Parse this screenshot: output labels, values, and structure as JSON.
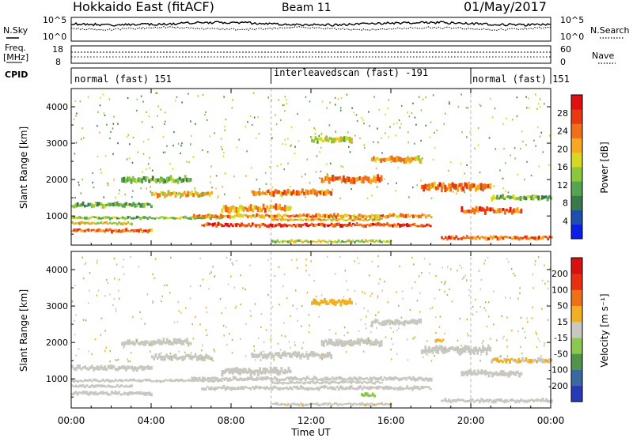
{
  "header": {
    "title": "Hokkaido East (fitACF)",
    "beam": "Beam 11",
    "date": "01/May/2017"
  },
  "aux_panels": {
    "nsky_label": "N.Sky",
    "nsearch_label": "N.Search",
    "noise_top_tick": "10^5",
    "noise_bottom_tick": "10^0",
    "freq_label_1": "Freq.",
    "freq_label_2": "[MHz]",
    "freq_ticks": [
      "18",
      "8"
    ],
    "nave_label": "Nave",
    "nave_ticks": [
      "60",
      "0"
    ],
    "cpid_label": "CPID",
    "cpid_segments": [
      {
        "label": "normal (fast) 151",
        "start_hour": 0,
        "end_hour": 10
      },
      {
        "label": "interleavedscan (fast) -191",
        "start_hour": 10,
        "end_hour": 20
      },
      {
        "label": "normal (fast) 151",
        "start_hour": 20,
        "end_hour": 24
      }
    ]
  },
  "chart_data": [
    {
      "type": "heatmap",
      "panel": "power",
      "ylabel": "Slant Range [km]",
      "ylim": [
        200,
        4500
      ],
      "yticks": [
        1000,
        2000,
        3000,
        4000
      ],
      "xlim": [
        0,
        24
      ],
      "colorbar": {
        "label": "Power [dB]",
        "range": [
          0,
          32
        ],
        "ticks": [
          "4",
          "8",
          "12",
          "16",
          "20",
          "24",
          "28"
        ],
        "colors": [
          "#0a1ee8",
          "#1e4fb0",
          "#3a7a4a",
          "#55a550",
          "#8cc83c",
          "#d8d820",
          "#f5a820",
          "#f07018",
          "#e83a10",
          "#e01010"
        ]
      },
      "bands": [
        {
          "t0": 0.0,
          "t1": 4.0,
          "r": 600,
          "w": 40,
          "v": 24
        },
        {
          "t0": 0.0,
          "t1": 3.0,
          "r": 800,
          "w": 30,
          "v": 18
        },
        {
          "t0": 0.0,
          "t1": 7.5,
          "r": 950,
          "w": 30,
          "v": 14
        },
        {
          "t0": 6.0,
          "t1": 18.0,
          "r": 1000,
          "w": 40,
          "v": 22
        },
        {
          "t0": 6.5,
          "t1": 18.0,
          "r": 750,
          "w": 40,
          "v": 27
        },
        {
          "t0": 10.0,
          "t1": 15.5,
          "r": 900,
          "w": 30,
          "v": 20
        },
        {
          "t0": 18.5,
          "t1": 24.0,
          "r": 400,
          "w": 40,
          "v": 25
        },
        {
          "t0": 0.0,
          "t1": 4.0,
          "r": 1300,
          "w": 50,
          "v": 12
        },
        {
          "t0": 4.0,
          "t1": 7.0,
          "r": 1600,
          "w": 60,
          "v": 20
        },
        {
          "t0": 7.5,
          "t1": 11.0,
          "r": 1200,
          "w": 70,
          "v": 21
        },
        {
          "t0": 9.0,
          "t1": 13.0,
          "r": 1650,
          "w": 60,
          "v": 23
        },
        {
          "t0": 12.5,
          "t1": 15.5,
          "r": 2000,
          "w": 70,
          "v": 24
        },
        {
          "t0": 15.0,
          "t1": 17.5,
          "r": 2550,
          "w": 60,
          "v": 20
        },
        {
          "t0": 17.5,
          "t1": 21.0,
          "r": 1800,
          "w": 80,
          "v": 24
        },
        {
          "t0": 19.5,
          "t1": 22.5,
          "r": 1150,
          "w": 60,
          "v": 25
        },
        {
          "t0": 21.0,
          "t1": 24.0,
          "r": 1500,
          "w": 50,
          "v": 14
        },
        {
          "t0": 10.0,
          "t1": 16.0,
          "r": 300,
          "w": 30,
          "v": 16
        },
        {
          "t0": 2.5,
          "t1": 6.0,
          "r": 2000,
          "w": 60,
          "v": 12
        },
        {
          "t0": 12.0,
          "t1": 14.0,
          "r": 3100,
          "w": 60,
          "v": 16
        }
      ]
    },
    {
      "type": "heatmap",
      "panel": "velocity",
      "xlabel": "Time UT",
      "ylabel": "Slant Range [km]",
      "ylim": [
        200,
        4500
      ],
      "yticks": [
        1000,
        2000,
        3000,
        4000
      ],
      "xlim": [
        0,
        24
      ],
      "xticks": [
        "00:00",
        "04:00",
        "08:00",
        "12:00",
        "16:00",
        "20:00",
        "00:00"
      ],
      "colorbar": {
        "label": "Velocity [m s⁻¹]",
        "range": [
          -250,
          250
        ],
        "ticks": [
          "200",
          "100",
          "50",
          "15",
          "-15",
          "-50",
          "-100",
          "-200"
        ],
        "colors": [
          "#2838b8",
          "#3a68a0",
          "#50944c",
          "#8cc850",
          "#c8c8c0",
          "#f0b020",
          "#f07018",
          "#e83010",
          "#d81010"
        ]
      },
      "bands": [
        {
          "t0": 0.0,
          "t1": 4.0,
          "r": 600,
          "w": 40,
          "v": 0
        },
        {
          "t0": 0.0,
          "t1": 3.0,
          "r": 800,
          "w": 30,
          "v": 0
        },
        {
          "t0": 0.0,
          "t1": 7.5,
          "r": 950,
          "w": 30,
          "v": 5
        },
        {
          "t0": 6.0,
          "t1": 18.0,
          "r": 1000,
          "w": 40,
          "v": 0
        },
        {
          "t0": 6.5,
          "t1": 18.0,
          "r": 750,
          "w": 40,
          "v": -5
        },
        {
          "t0": 10.0,
          "t1": 15.5,
          "r": 900,
          "w": 30,
          "v": 0
        },
        {
          "t0": 18.5,
          "t1": 24.0,
          "r": 400,
          "w": 40,
          "v": 0
        },
        {
          "t0": 0.0,
          "t1": 4.0,
          "r": 1300,
          "w": 50,
          "v": 0
        },
        {
          "t0": 4.0,
          "t1": 7.0,
          "r": 1600,
          "w": 60,
          "v": 0
        },
        {
          "t0": 7.5,
          "t1": 11.0,
          "r": 1200,
          "w": 70,
          "v": 0
        },
        {
          "t0": 9.0,
          "t1": 13.0,
          "r": 1650,
          "w": 60,
          "v": 0
        },
        {
          "t0": 12.5,
          "t1": 15.5,
          "r": 2000,
          "w": 70,
          "v": 0
        },
        {
          "t0": 15.0,
          "t1": 17.5,
          "r": 2550,
          "w": 60,
          "v": 5
        },
        {
          "t0": 17.5,
          "t1": 21.0,
          "r": 1800,
          "w": 80,
          "v": 0
        },
        {
          "t0": 19.5,
          "t1": 22.5,
          "r": 1150,
          "w": 60,
          "v": 0
        },
        {
          "t0": 21.0,
          "t1": 24.0,
          "r": 1500,
          "w": 50,
          "v": 30
        },
        {
          "t0": 10.0,
          "t1": 16.0,
          "r": 300,
          "w": 30,
          "v": 20
        },
        {
          "t0": 2.5,
          "t1": 6.0,
          "r": 2000,
          "w": 60,
          "v": 0
        },
        {
          "t0": 12.0,
          "t1": 14.0,
          "r": 3100,
          "w": 60,
          "v": 40
        },
        {
          "t0": 14.5,
          "t1": 15.2,
          "r": 550,
          "w": 40,
          "v": -60
        },
        {
          "t0": 18.2,
          "t1": 18.6,
          "r": 2050,
          "w": 40,
          "v": 60
        }
      ]
    }
  ]
}
